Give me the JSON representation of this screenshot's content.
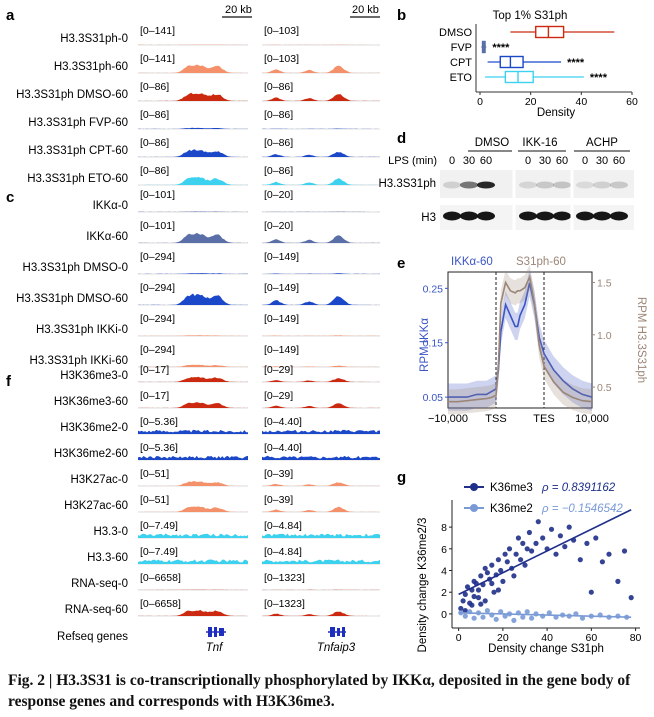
{
  "panels": {
    "a": {
      "letter": "a",
      "scalebars": [
        "20 kb",
        "20 kb"
      ],
      "colors": [
        "#f4916b",
        "#cc2a10",
        "#5a6fa8",
        "#1b47c9",
        "#3cd1ef"
      ],
      "tracks": [
        {
          "label": "H3.3S31ph-0",
          "left": "[0–141]",
          "right": "[0–103]",
          "color": "#f4916b",
          "lv": 0.02,
          "rv": 0.02
        },
        {
          "label": "H3.3S31ph-60",
          "left": "[0–141]",
          "right": "[0–103]",
          "color": "#f4916b",
          "lv": 0.95,
          "rv": 0.9
        },
        {
          "label": "H3.3S31ph DMSO-60",
          "left": "[0–86]",
          "right": "[0–86]",
          "color": "#cc2a10",
          "lv": 0.95,
          "rv": 0.85
        },
        {
          "label": "H3.3S31ph FVP-60",
          "left": "[0–86]",
          "right": "[0–86]",
          "color": "#1b47c9",
          "lv": 0.12,
          "rv": 0.04
        },
        {
          "label": "H3.3S31ph CPT-60",
          "left": "[0–86]",
          "right": "[0–86]",
          "color": "#1b47c9",
          "lv": 0.85,
          "rv": 0.65
        },
        {
          "label": "H3.3S31ph ETO-60",
          "left": "[0–86]",
          "right": "[0–86]",
          "color": "#3cd1ef",
          "lv": 0.9,
          "rv": 0.75
        }
      ]
    },
    "b": {
      "letter": "b",
      "chart_data": {
        "type": "box",
        "title": "Top 1% S31ph",
        "xlabel": "Density",
        "ylabel": "",
        "xlim": [
          0,
          60
        ],
        "xticks": [
          0,
          20,
          40,
          60
        ],
        "categories": [
          "DMSO",
          "FVP",
          "CPT",
          "ETO"
        ],
        "boxes": [
          {
            "name": "DMSO",
            "min": 12,
            "q1": 22,
            "median": 27,
            "q3": 33,
            "max": 53,
            "color": "#cc2a10",
            "sig": ""
          },
          {
            "name": "FVP",
            "min": 0.5,
            "q1": 1,
            "median": 1.5,
            "q3": 2,
            "max": 2.5,
            "color": "#5a6fa8",
            "sig": "****"
          },
          {
            "name": "CPT",
            "min": 3,
            "q1": 8,
            "median": 12,
            "q3": 17,
            "max": 32,
            "color": "#1b47c9",
            "sig": "****"
          },
          {
            "name": "ETO",
            "min": 2,
            "q1": 10,
            "median": 15,
            "q3": 21,
            "max": 41,
            "color": "#3cd1ef",
            "sig": "****"
          }
        ]
      }
    },
    "c": {
      "letter": "c",
      "tracks": [
        {
          "label": "IKKα-0",
          "left": "[0–101]",
          "right": "[0–20]",
          "color": "#5a6fa8",
          "lv": 0.03,
          "rv": 0.03
        },
        {
          "label": "IKKα-60",
          "left": "[0–101]",
          "right": "[0–20]",
          "color": "#5a6fa8",
          "lv": 0.85,
          "rv": 0.7
        },
        {
          "label": "H3.3S31ph DMSO-0",
          "left": "[0–294]",
          "right": "[0–149]",
          "color": "#1b47c9",
          "lv": 0.06,
          "rv": 0.06
        },
        {
          "label": "H3.3S31ph DMSO-60",
          "left": "[0–294]",
          "right": "[0–149]",
          "color": "#1b47c9",
          "lv": 0.95,
          "rv": 0.85
        },
        {
          "label": "H3.3S31ph IKKi-0",
          "left": "[0–294]",
          "right": "[0–149]",
          "color": "#f4916b",
          "lv": 0.05,
          "rv": 0.05
        },
        {
          "label": "H3.3S31ph IKKi-60",
          "left": "[0–294]",
          "right": "[0–149]",
          "color": "#f4916b",
          "lv": 0.18,
          "rv": 0.1
        }
      ]
    },
    "d": {
      "letter": "d",
      "groups": [
        "DMSO",
        "IKK-16",
        "ACHP"
      ],
      "lps_label": "LPS (min)",
      "timepoints": [
        "0",
        "30",
        "60",
        "0",
        "30",
        "60",
        "0",
        "30",
        "60"
      ],
      "blots": [
        "H3.3S31ph",
        "H3"
      ]
    },
    "e": {
      "letter": "e",
      "chart_data": {
        "type": "line",
        "title": "",
        "legend": [
          "IKKα-60",
          "S31ph-60"
        ],
        "xlabel": "",
        "xticks": [
          "−10,000",
          "TSS",
          "TES",
          "10,000"
        ],
        "ylabel": "RPM IKKα",
        "ylabel_right": "RPM H3.3S31ph",
        "ylim": [
          0.03,
          0.28
        ],
        "yticks": [
          0.05,
          0.15,
          0.25
        ],
        "ylim_right": [
          0.3,
          1.6
        ],
        "yticks_right": [
          0.5,
          1.0,
          1.5
        ],
        "x": [
          -10000,
          -8000,
          -6000,
          -4000,
          -2000,
          -1000,
          0,
          500,
          1000,
          2000,
          3000,
          4000,
          4500,
          5000,
          6000,
          7000,
          8000,
          9000,
          10000,
          12000,
          14000,
          16000,
          18000,
          20000
        ],
        "series": [
          {
            "name": "IKKα-60",
            "color": "#3b55c4",
            "axis": "left",
            "values": [
              0.05,
              0.05,
              0.05,
              0.055,
              0.055,
              0.06,
              0.065,
              0.1,
              0.17,
              0.22,
              0.2,
              0.18,
              0.18,
              0.2,
              0.22,
              0.26,
              0.22,
              0.16,
              0.13,
              0.1,
              0.08,
              0.065,
              0.055,
              0.05
            ]
          },
          {
            "name": "S31ph-60",
            "color": "#9b8678",
            "axis": "right",
            "values": [
              0.36,
              0.36,
              0.37,
              0.38,
              0.39,
              0.4,
              0.42,
              0.7,
              1.3,
              1.5,
              1.42,
              1.4,
              1.42,
              1.42,
              1.45,
              1.55,
              1.3,
              0.9,
              0.7,
              0.55,
              0.45,
              0.4,
              0.37,
              0.36
            ]
          }
        ]
      }
    },
    "f": {
      "letter": "f",
      "refseq_label": "Refseq genes",
      "genes": [
        "Tnf",
        "Tnfaip3"
      ],
      "tracks": [
        {
          "label": "H3K36me3-0",
          "left": "[0–17]",
          "right": "[0–29]",
          "color": "#cc2a10",
          "lv": 0.75,
          "rv": 0.6
        },
        {
          "label": "H3K36me3-60",
          "left": "[0–17]",
          "right": "[0–29]",
          "color": "#cc2a10",
          "lv": 0.85,
          "rv": 0.75
        },
        {
          "label": "H3K36me2-0",
          "left": "[0–5.36]",
          "right": "[0–4.40]",
          "color": "#1b47c9",
          "lv": 0.6,
          "rv": 0.6,
          "dense": true
        },
        {
          "label": "H3K36me2-60",
          "left": "[0–5.36]",
          "right": "[0–4.40]",
          "color": "#1b47c9",
          "lv": 0.6,
          "rv": 0.6,
          "dense": true
        },
        {
          "label": "H3K27ac-0",
          "left": "[0–51]",
          "right": "[0–39]",
          "color": "#f4916b",
          "lv": 0.7,
          "rv": 0.6
        },
        {
          "label": "H3K27ac-60",
          "left": "[0–51]",
          "right": "[0–39]",
          "color": "#f4916b",
          "lv": 0.8,
          "rv": 0.75
        },
        {
          "label": "H3.3-0",
          "left": "[0–7.49]",
          "right": "[0–4.84]",
          "color": "#3cd1ef",
          "lv": 0.65,
          "rv": 0.65,
          "dense": true
        },
        {
          "label": "H3.3-60",
          "left": "[0–7.49]",
          "right": "[0–4.84]",
          "color": "#3cd1ef",
          "lv": 0.65,
          "rv": 0.65,
          "dense": true
        },
        {
          "label": "RNA-seq-0",
          "left": "[0–6658]",
          "right": "[0–1323]",
          "color": "#cc2a10",
          "lv": 0.02,
          "rv": 0.02
        },
        {
          "label": "RNA-seq-60",
          "left": "[0–6658]",
          "right": "[0–1323]",
          "color": "#cc2a10",
          "lv": 0.9,
          "rv": 0.7
        }
      ]
    },
    "g": {
      "letter": "g",
      "chart_data": {
        "type": "scatter",
        "title": "",
        "xlabel": "Density change S31ph",
        "ylabel": "Density change K36me2/3",
        "xlim": [
          -3,
          82
        ],
        "ylim": [
          -1.3,
          10.5
        ],
        "xticks": [
          0,
          20,
          40,
          60,
          80
        ],
        "yticks": [
          0,
          2,
          4,
          6,
          8
        ],
        "series": [
          {
            "name": "K36me3",
            "rho": "ρ = 0.8391162",
            "color": "#1f2f8a",
            "points": [
              [
                1,
                0.5
              ],
              [
                2,
                1.2
              ],
              [
                3,
                1.8
              ],
              [
                4,
                2.5
              ],
              [
                5,
                1.0
              ],
              [
                6,
                2.2
              ],
              [
                7,
                3.0
              ],
              [
                8,
                2.8
              ],
              [
                9,
                1.5
              ],
              [
                10,
                3.5
              ],
              [
                11,
                2.7
              ],
              [
                12,
                4.2
              ],
              [
                13,
                3.8
              ],
              [
                14,
                3.2
              ],
              [
                15,
                4.5
              ],
              [
                16,
                2.0
              ],
              [
                17,
                3.6
              ],
              [
                18,
                5.0
              ],
              [
                19,
                4.0
              ],
              [
                20,
                3.0
              ],
              [
                21,
                5.5
              ],
              [
                22,
                4.8
              ],
              [
                23,
                6.0
              ],
              [
                24,
                4.2
              ],
              [
                25,
                3.5
              ],
              [
                26,
                5.5
              ],
              [
                27,
                7.0
              ],
              [
                28,
                5.0
              ],
              [
                29,
                6.5
              ],
              [
                30,
                4.5
              ],
              [
                31,
                6.0
              ],
              [
                32,
                7.5
              ],
              [
                33,
                5.8
              ],
              [
                35,
                6.5
              ],
              [
                36,
                8.5
              ],
              [
                38,
                7.0
              ],
              [
                40,
                6.0
              ],
              [
                42,
                7.8
              ],
              [
                44,
                5.5
              ],
              [
                46,
                7.2
              ],
              [
                48,
                6.2
              ],
              [
                50,
                8.0
              ],
              [
                52,
                6.8
              ],
              [
                55,
                5.0
              ],
              [
                58,
                6.5
              ],
              [
                60,
                2.0
              ],
              [
                62,
                7.0
              ],
              [
                65,
                4.8
              ],
              [
                68,
                5.5
              ],
              [
                72,
                3.0
              ],
              [
                75,
                5.8
              ],
              [
                78,
                1.5
              ],
              [
                6,
                0.8
              ],
              [
                9,
                2.2
              ],
              [
                12,
                1.2
              ],
              [
                15,
                2.8
              ],
              [
                18,
                2.2
              ],
              [
                3,
                0.3
              ],
              [
                7,
                1.6
              ],
              [
                10,
                0.9
              ]
            ],
            "fit": [
              [
                0,
                1.8
              ],
              [
                78,
                9.6
              ]
            ]
          },
          {
            "name": "K36me2",
            "rho": "ρ = −0.1546542",
            "color": "#7a9ad6",
            "points": [
              [
                1,
                0.1
              ],
              [
                3,
                -0.2
              ],
              [
                5,
                0.2
              ],
              [
                7,
                -0.4
              ],
              [
                9,
                0.1
              ],
              [
                11,
                -0.3
              ],
              [
                13,
                0.3
              ],
              [
                15,
                -0.1
              ],
              [
                17,
                -0.5
              ],
              [
                19,
                0.2
              ],
              [
                21,
                -0.2
              ],
              [
                23,
                0.0
              ],
              [
                25,
                -0.6
              ],
              [
                27,
                0.1
              ],
              [
                29,
                -0.3
              ],
              [
                31,
                0.2
              ],
              [
                33,
                -0.4
              ],
              [
                35,
                0.0
              ],
              [
                38,
                -0.2
              ],
              [
                41,
                0.1
              ],
              [
                44,
                -0.3
              ],
              [
                47,
                -0.1
              ],
              [
                50,
                -0.2
              ],
              [
                53,
                0.0
              ],
              [
                56,
                -0.4
              ],
              [
                60,
                -0.2
              ],
              [
                64,
                -0.1
              ],
              [
                68,
                -0.3
              ],
              [
                72,
                -0.2
              ],
              [
                76,
                -0.3
              ]
            ],
            "fit": [
              [
                0,
                0.1
              ],
              [
                78,
                -0.3
              ]
            ]
          }
        ]
      }
    }
  },
  "caption": {
    "lead": "Fig. 2 | ",
    "bold": "H3.3S31 is co-transcriptionally phosphorylated by IKKα, deposited in the gene body of response genes and corresponds with H3K36me3."
  }
}
